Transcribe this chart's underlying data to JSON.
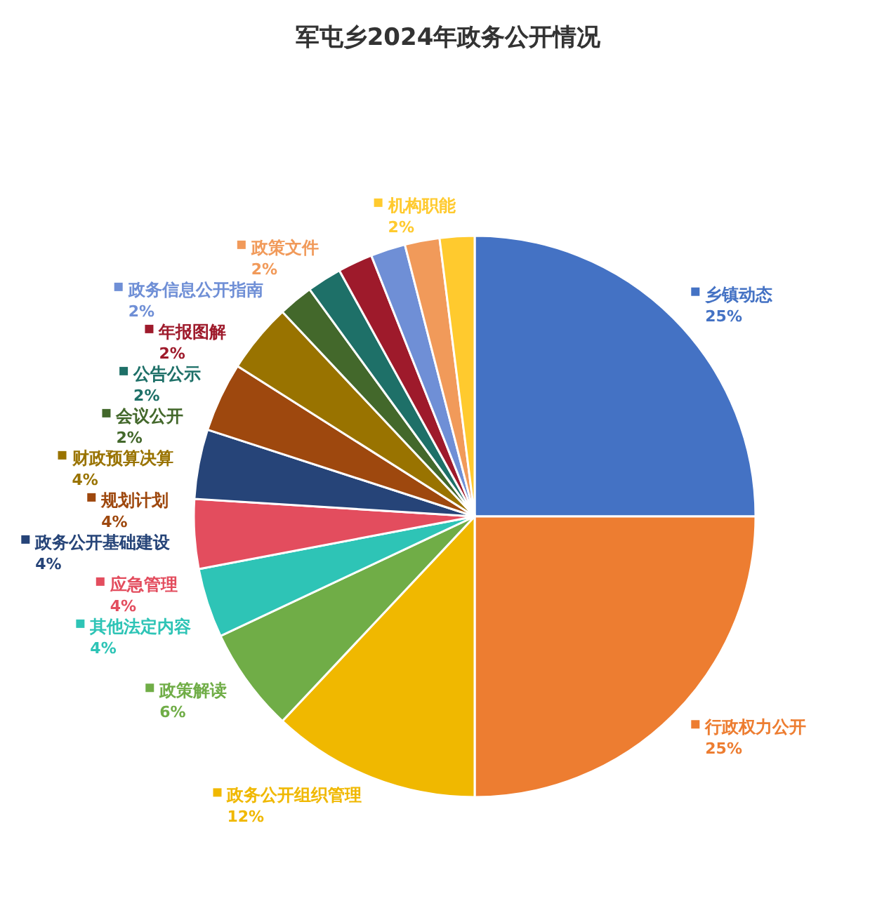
{
  "chart_data": {
    "type": "pie",
    "title": "军屯乡2024年政务公开情况",
    "categories": [
      "乡镇动态",
      "行政权力公开",
      "政务公开组织管理",
      "政策解读",
      "其他法定内容",
      "应急管理",
      "政务公开基础建设",
      "规划计划",
      "财政预算决算",
      "会议公开",
      "公告公示",
      "年报图解",
      "政务信息公开指南",
      "政策文件",
      "机构职能"
    ],
    "values": [
      25,
      25,
      12,
      6,
      4,
      4,
      4,
      4,
      4,
      2,
      2,
      2,
      2,
      2,
      2
    ],
    "value_labels": [
      "25%",
      "25%",
      "12%",
      "6%",
      "4%",
      "4%",
      "4%",
      "4%",
      "4%",
      "2%",
      "2%",
      "2%",
      "2%",
      "2%",
      "2%"
    ],
    "colors": [
      "#4472c4",
      "#ed7d31",
      "#f0b800",
      "#70ad47",
      "#2ec4b6",
      "#e34d5e",
      "#264478",
      "#9e480e",
      "#997300",
      "#43682b",
      "#1e7068",
      "#9e1a2b",
      "#6f8fd6",
      "#f19a5a",
      "#ffca2e"
    ],
    "legend": "left"
  }
}
